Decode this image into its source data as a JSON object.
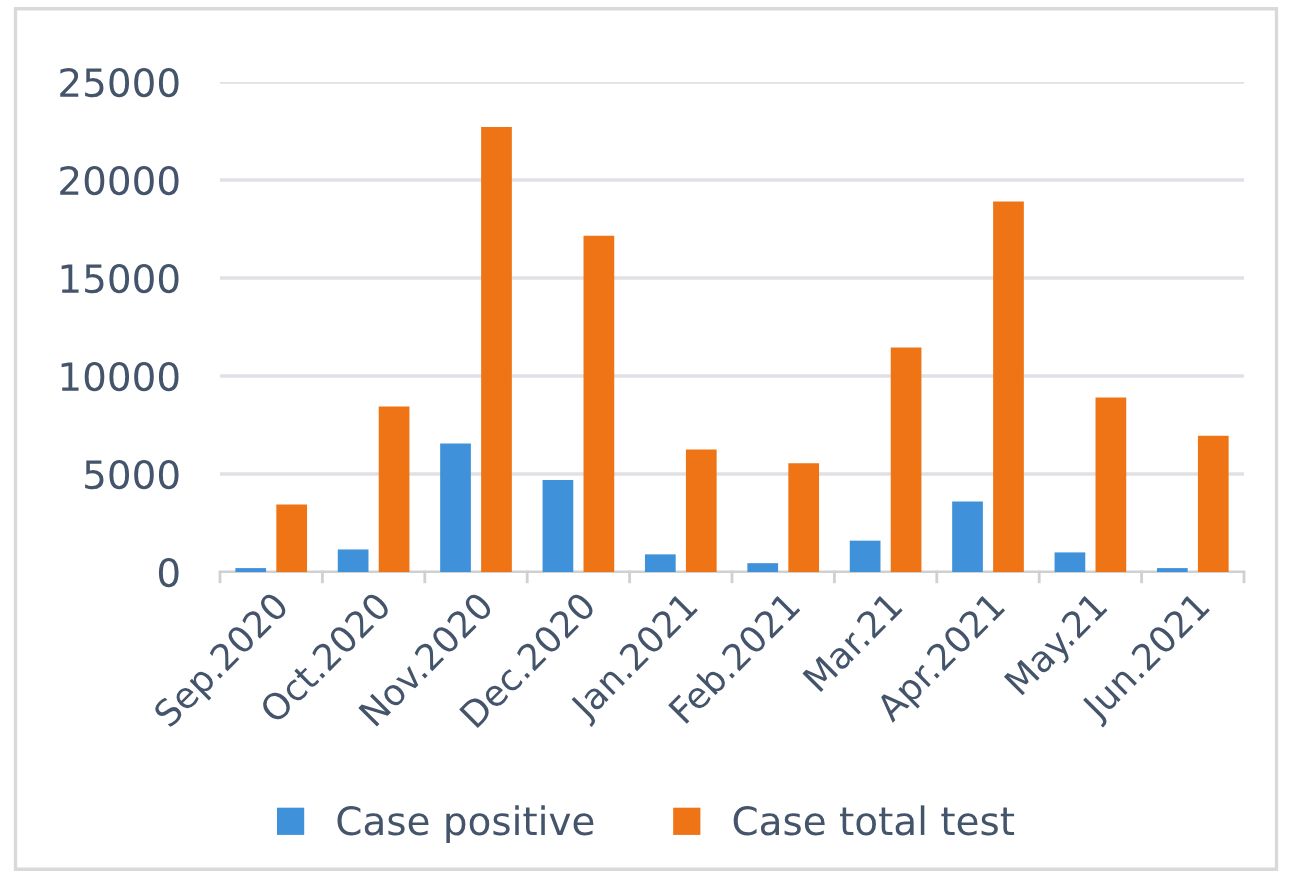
{
  "chart_data": {
    "type": "bar",
    "categories": [
      "Sep.2020",
      "Oct.2020",
      "Nov.2020",
      "Dec.2020",
      "Jan.2021",
      "Feb.2021",
      "Mar.21",
      "Apr.2021",
      "May.21",
      "Jun.2021"
    ],
    "series": [
      {
        "name": "Case positive",
        "color": "#3f92da",
        "values": [
          200,
          1150,
          6550,
          4700,
          900,
          450,
          1600,
          3600,
          1000,
          200
        ]
      },
      {
        "name": "Case total test",
        "color": "#ee7416",
        "values": [
          3450,
          8450,
          22700,
          17150,
          6250,
          5550,
          11450,
          18900,
          8900,
          6950
        ]
      }
    ],
    "ylim": [
      0,
      25000
    ],
    "yticks": [
      0,
      5000,
      10000,
      15000,
      20000,
      25000
    ],
    "grid": "y",
    "legend": "bottom"
  }
}
